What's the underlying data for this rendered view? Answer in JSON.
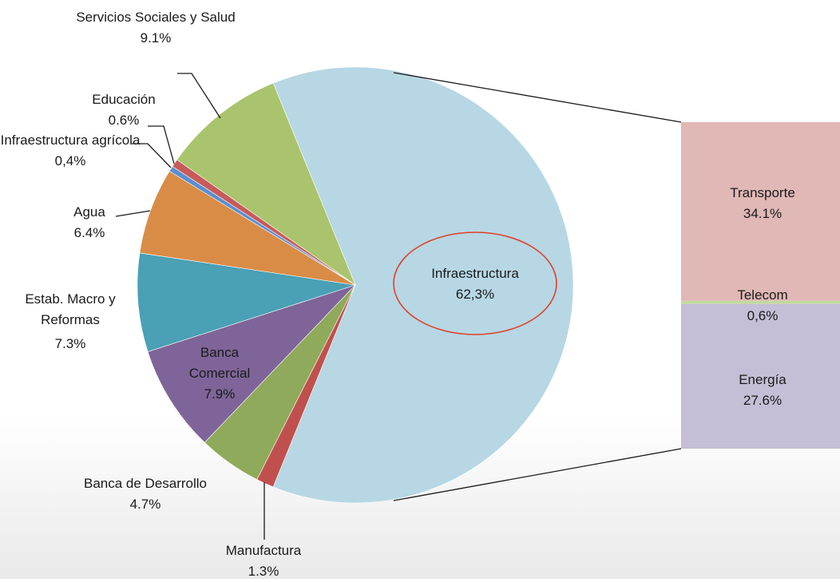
{
  "chart_data": {
    "type": "bar-of-pie",
    "categories": [
      "Infraestructura",
      "Manufactura",
      "Banca de Desarrollo",
      "Banca Comercial",
      "Estab. Macro y Reformas",
      "Agua",
      "Infraestructura agrícola",
      "Educación",
      "Servicios Sociales y Salud"
    ],
    "values": [
      62.3,
      1.3,
      4.7,
      7.9,
      7.3,
      6.4,
      0.4,
      0.6,
      9.1
    ],
    "value_labels": [
      "62,3%",
      "1.3%",
      "4.7%",
      "7.9%",
      "7.3%",
      "6.4%",
      "0,4%",
      "0.6%",
      "9.1%"
    ],
    "colors": [
      "#b7d7e4",
      "#c0504d",
      "#8faa5a",
      "#7f6499",
      "#4aa0b5",
      "#d98c46",
      "#5b8fd0",
      "#c85a5a",
      "#a9c46c"
    ],
    "breakdown": {
      "categories": [
        "Transporte",
        "Telecom",
        "Energía"
      ],
      "values": [
        34.1,
        0.6,
        27.6
      ],
      "value_labels": [
        "34.1%",
        "0,6%",
        "27.6%"
      ],
      "colors": [
        "#e0b8b5",
        "#c3d9a0",
        "#c6bdd6"
      ]
    }
  }
}
